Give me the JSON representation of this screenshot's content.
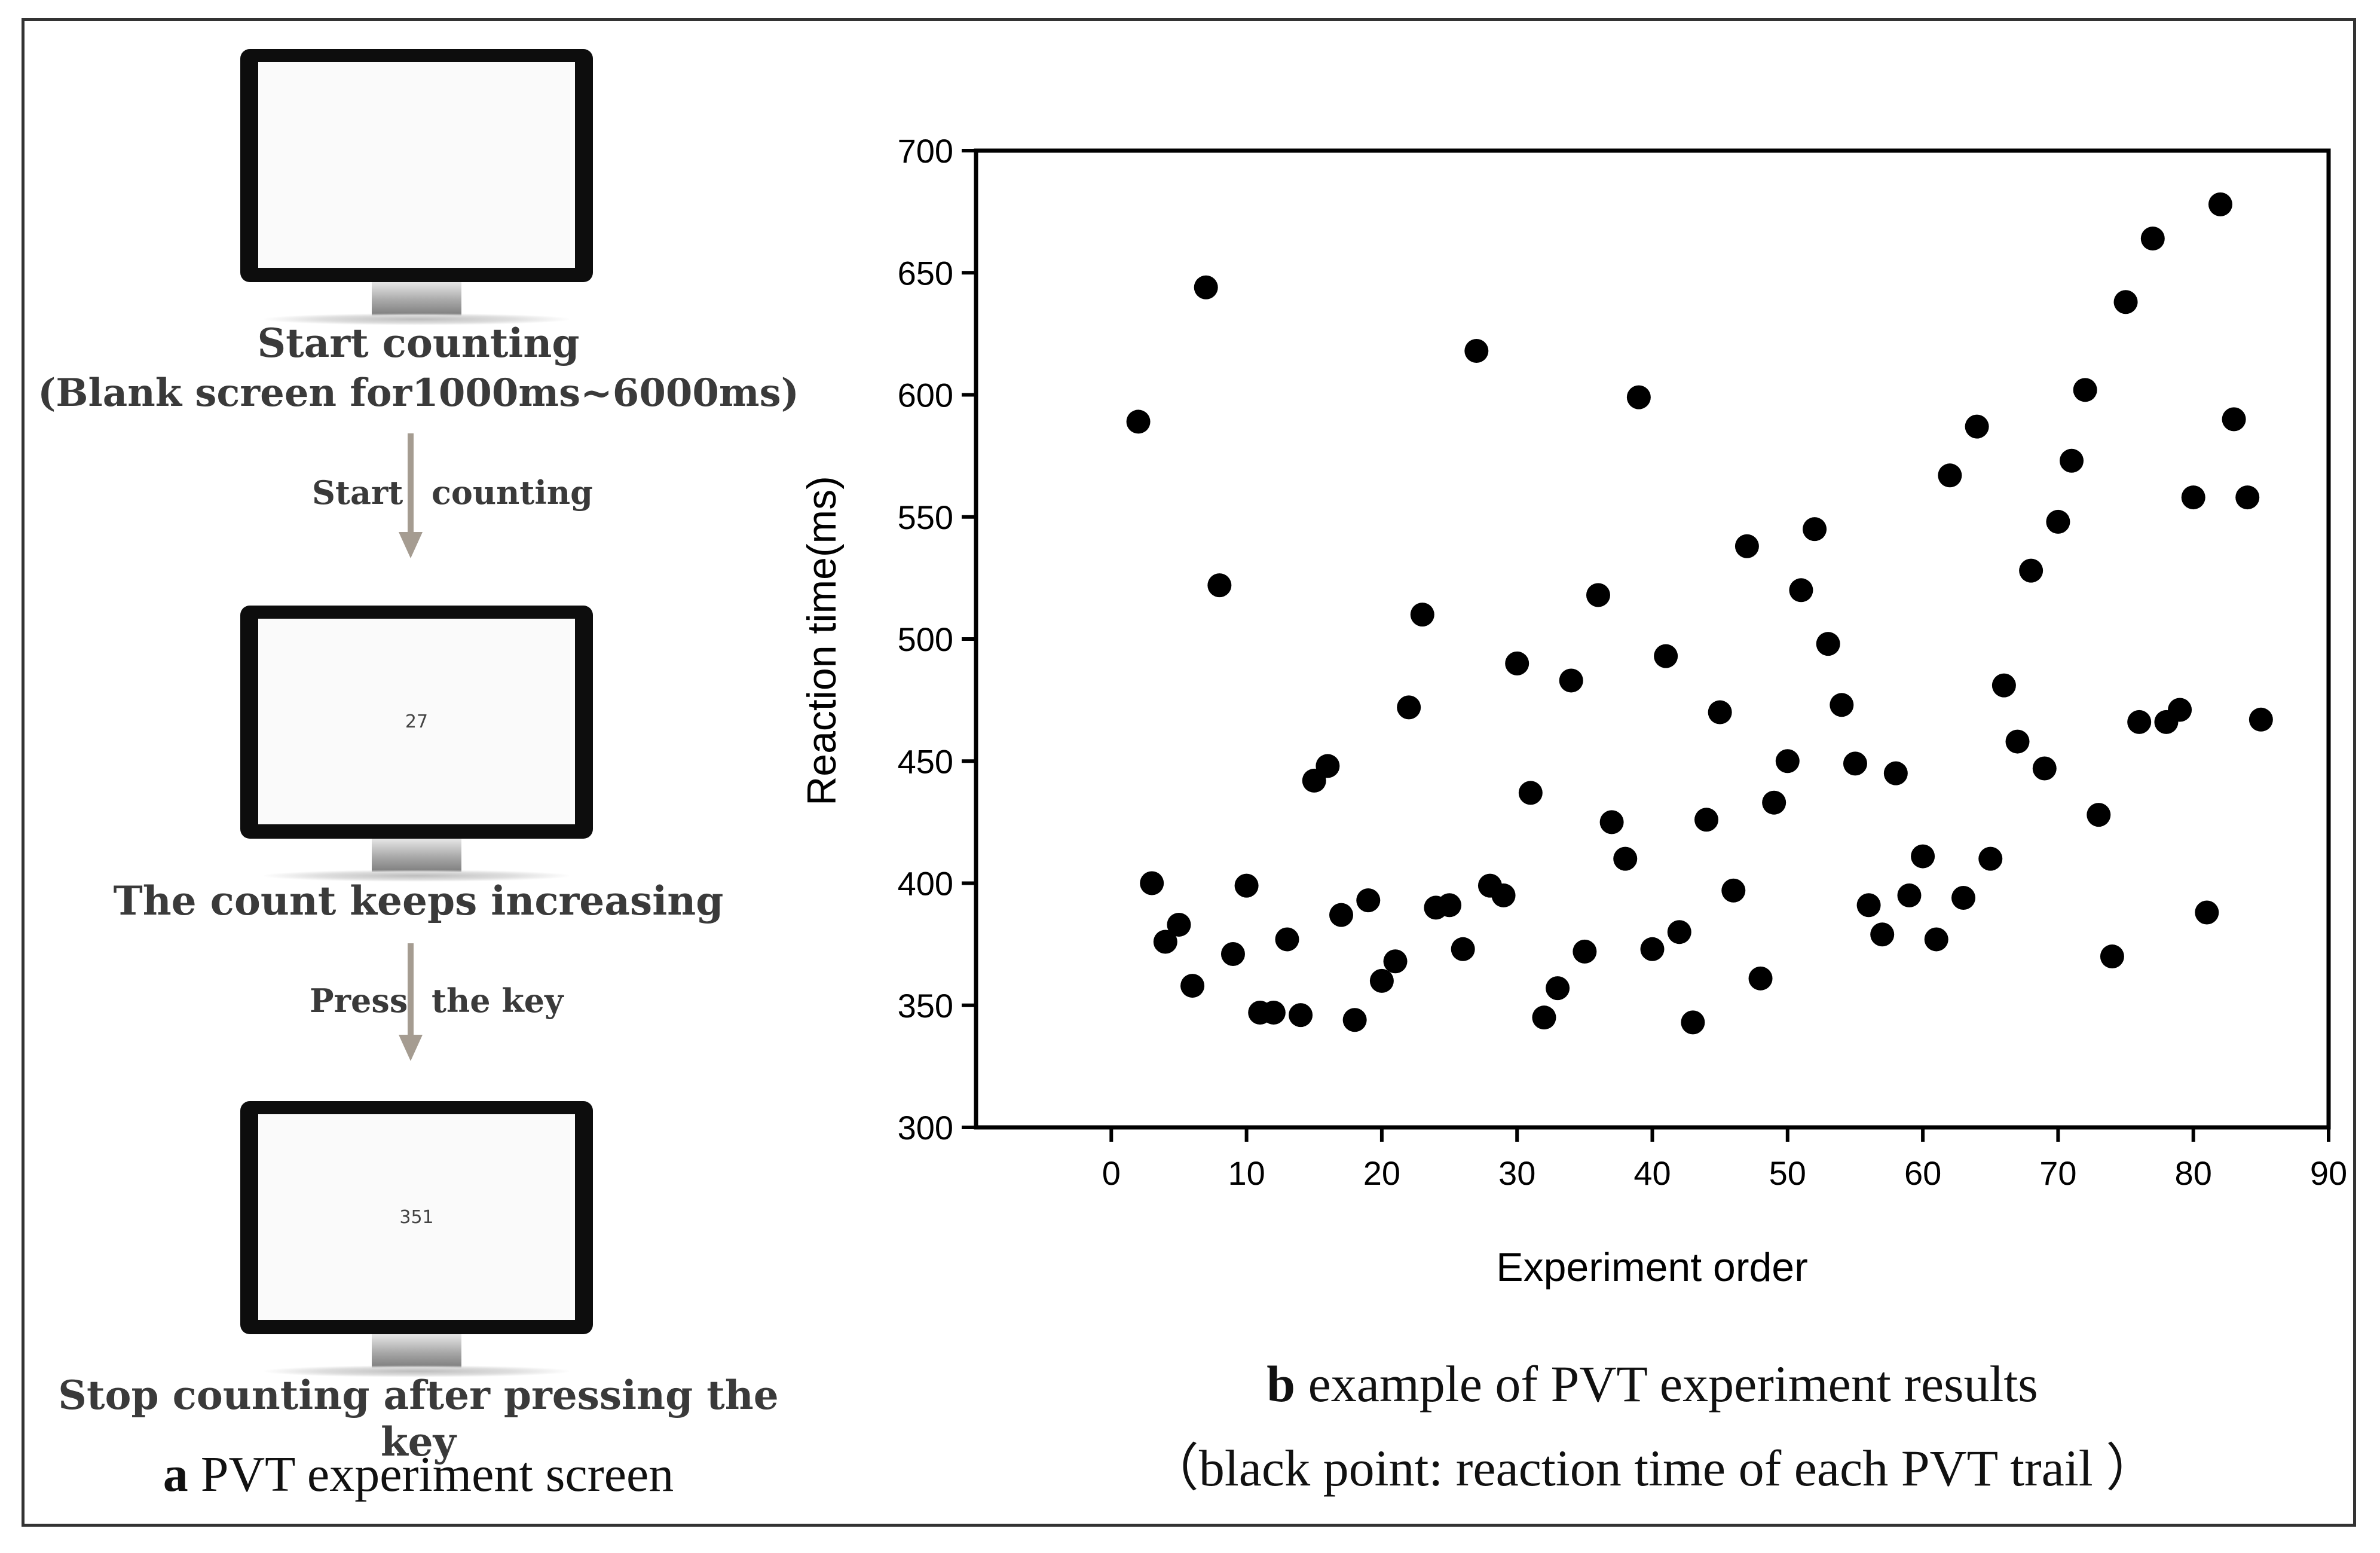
{
  "left_panel": {
    "screen1_text": "",
    "step1_line1": "Start counting",
    "step1_line2": "(Blank screen for1000ms~6000ms)",
    "arrow1_left": "Start",
    "arrow1_right": "counting",
    "screen2_text": "27",
    "step2_label": "The count keeps increasing",
    "arrow2_left": "Press",
    "arrow2_right": "the key",
    "screen3_text": "351",
    "step3_label": "Stop counting after pressing the key",
    "caption_letter": "a",
    "caption_text": "PVT experiment screen",
    "arrow_color": "#a59c91"
  },
  "right_panel": {
    "caption_letter": "b",
    "caption_line1": "example of PVT experiment results",
    "caption_line2": "（black point:  reaction time of each PVT trail ）"
  },
  "chart_data": {
    "type": "scatter",
    "title": "",
    "xlabel": "Experiment order",
    "ylabel": "Reaction time(ms)",
    "xlim": [
      -10,
      90
    ],
    "ylim": [
      300,
      700
    ],
    "xticks": [
      0,
      10,
      20,
      30,
      40,
      50,
      60,
      70,
      80,
      90
    ],
    "yticks": [
      300,
      350,
      400,
      450,
      500,
      550,
      600,
      650,
      700
    ],
    "marker_color": "#000000",
    "series": [
      {
        "name": "reaction time of each PVT trail",
        "x": [
          2,
          3,
          4,
          5,
          6,
          7,
          8,
          9,
          10,
          11,
          12,
          13,
          14,
          15,
          16,
          17,
          18,
          19,
          20,
          21,
          22,
          23,
          24,
          25,
          26,
          27,
          28,
          29,
          30,
          31,
          32,
          33,
          34,
          35,
          36,
          37,
          38,
          39,
          40,
          41,
          42,
          43,
          44,
          45,
          46,
          47,
          48,
          49,
          50,
          51,
          52,
          53,
          54,
          55,
          56,
          57,
          58,
          59,
          60,
          61,
          62,
          63,
          64,
          65,
          66,
          67,
          68,
          69,
          70,
          71,
          72,
          73,
          74,
          75,
          76,
          77,
          78,
          79,
          80,
          81,
          82,
          83,
          84,
          85
        ],
        "y": [
          589,
          400,
          376,
          383,
          358,
          644,
          522,
          371,
          399,
          347,
          347,
          377,
          346,
          442,
          448,
          387,
          344,
          393,
          360,
          368,
          472,
          510,
          390,
          391,
          373,
          618,
          399,
          395,
          490,
          437,
          345,
          357,
          483,
          372,
          518,
          425,
          410,
          599,
          373,
          493,
          380,
          343,
          426,
          470,
          397,
          538,
          361,
          433,
          450,
          520,
          545,
          498,
          473,
          449,
          391,
          379,
          445,
          395,
          411,
          377,
          567,
          394,
          587,
          410,
          481,
          458,
          528,
          447,
          548,
          573,
          602,
          428,
          370,
          638,
          466,
          664,
          466,
          471,
          558,
          388,
          678,
          590,
          558,
          467
        ]
      }
    ]
  }
}
